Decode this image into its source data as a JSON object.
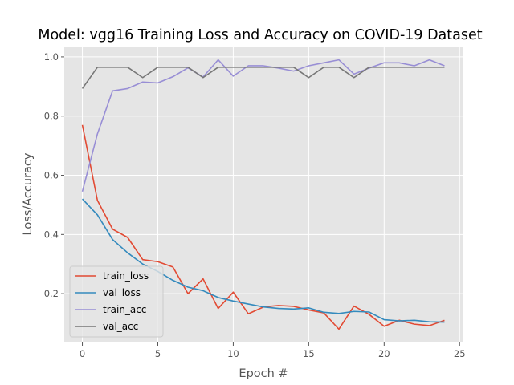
{
  "chart_data": {
    "type": "line",
    "title": "Model: vgg16 Training Loss and Accuracy on COVID-19 Dataset",
    "xlabel": "Epoch #",
    "ylabel": "Loss/Accuracy",
    "xlim": [
      -1.2,
      25.2
    ],
    "ylim": [
      0.035,
      1.035
    ],
    "xticks": [
      0,
      5,
      10,
      15,
      20,
      25
    ],
    "yticks": [
      0.2,
      0.4,
      0.6,
      0.8,
      1.0
    ],
    "xtick_labels": [
      "0",
      "5",
      "10",
      "15",
      "20",
      "25"
    ],
    "ytick_labels": [
      "0.2",
      "0.4",
      "0.6",
      "0.8",
      "1.0"
    ],
    "grid": true,
    "legend": "lower-left",
    "x": [
      0,
      1,
      2,
      3,
      4,
      5,
      6,
      7,
      8,
      9,
      10,
      11,
      12,
      13,
      14,
      15,
      16,
      17,
      18,
      19,
      20,
      21,
      22,
      23,
      24
    ],
    "series": [
      {
        "name": "train_loss",
        "color": "#e24a33",
        "values": [
          0.77,
          0.515,
          0.418,
          0.39,
          0.315,
          0.308,
          0.29,
          0.2,
          0.25,
          0.15,
          0.205,
          0.132,
          0.155,
          0.16,
          0.157,
          0.145,
          0.135,
          0.08,
          0.158,
          0.13,
          0.09,
          0.11,
          0.097,
          0.092,
          0.11
        ]
      },
      {
        "name": "val_loss",
        "color": "#348abd",
        "values": [
          0.52,
          0.466,
          0.383,
          0.338,
          0.3,
          0.275,
          0.245,
          0.222,
          0.21,
          0.187,
          0.175,
          0.165,
          0.155,
          0.15,
          0.148,
          0.152,
          0.137,
          0.133,
          0.14,
          0.138,
          0.112,
          0.108,
          0.11,
          0.105,
          0.104
        ]
      },
      {
        "name": "train_acc",
        "color": "#988ed5",
        "values": [
          0.545,
          0.74,
          0.885,
          0.893,
          0.915,
          0.912,
          0.933,
          0.963,
          0.932,
          0.99,
          0.935,
          0.97,
          0.97,
          0.962,
          0.952,
          0.97,
          0.98,
          0.99,
          0.942,
          0.962,
          0.98,
          0.98,
          0.97,
          0.99,
          0.97
        ]
      },
      {
        "name": "val_acc",
        "color": "#777777",
        "values": [
          0.893,
          0.965,
          0.965,
          0.965,
          0.93,
          0.965,
          0.965,
          0.965,
          0.93,
          0.965,
          0.965,
          0.965,
          0.965,
          0.965,
          0.965,
          0.93,
          0.965,
          0.965,
          0.93,
          0.965,
          0.965,
          0.965,
          0.965,
          0.965,
          0.965
        ]
      }
    ]
  }
}
